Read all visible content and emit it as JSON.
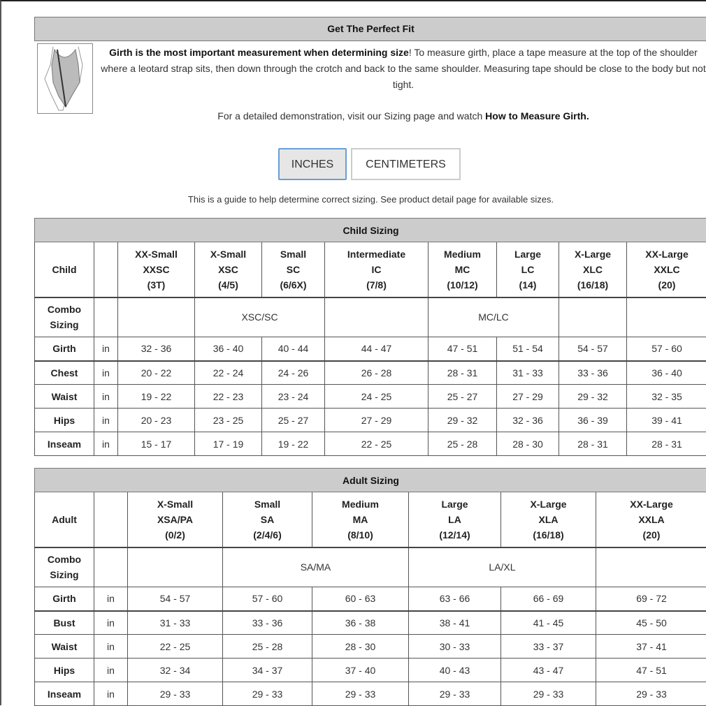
{
  "fit": {
    "title": "Get The Perfect Fit",
    "bold_lead": "Girth is the most important measurement when determining size",
    "body": "! To measure girth, place a tape measure at the top of the shoulder where a leotard strap sits, then down through the crotch and back to the same shoulder. Measuring tape should be close to the body but not tight.",
    "demo_prefix": "For a detailed demonstration, visit our Sizing page and watch ",
    "demo_link": "How to Measure Girth."
  },
  "units": {
    "inches": "INCHES",
    "centimeters": "CENTIMETERS",
    "selected": "INCHES",
    "accent": "#6a9ed6"
  },
  "guide": "This is a guide to help determine correct sizing. See product detail page for available sizes.",
  "child": {
    "title": "Child Sizing",
    "corner": "Child",
    "sizes": [
      [
        "XX-Small",
        "XXSC",
        "(3T)"
      ],
      [
        "X-Small",
        "XSC",
        "(4/5)"
      ],
      [
        "Small",
        "SC",
        "(6/6X)"
      ],
      [
        "Intermediate",
        "IC",
        "(7/8)"
      ],
      [
        "Medium",
        "MC",
        "(10/12)"
      ],
      [
        "Large",
        "LC",
        "(14)"
      ],
      [
        "X-Large",
        "XLC",
        "(16/18)"
      ],
      [
        "XX-Large",
        "XXLC",
        "(20)"
      ]
    ],
    "combo_label": "Combo Sizing",
    "combo": [
      {
        "text": "",
        "span": 1
      },
      {
        "text": "XSC/SC",
        "span": 2
      },
      {
        "text": "",
        "span": 1
      },
      {
        "text": "MC/LC",
        "span": 2
      },
      {
        "text": "",
        "span": 1
      },
      {
        "text": "",
        "span": 1
      }
    ],
    "unit": "in",
    "rows": [
      {
        "label": "Girth",
        "values": [
          "32 - 36",
          "36 - 40",
          "40 - 44",
          "44 - 47",
          "47 - 51",
          "51 - 54",
          "54 - 57",
          "57 - 60"
        ]
      },
      {
        "label": "Chest",
        "values": [
          "20 - 22",
          "22 - 24",
          "24 - 26",
          "26 - 28",
          "28 - 31",
          "31 - 33",
          "33 - 36",
          "36 - 40"
        ]
      },
      {
        "label": "Waist",
        "values": [
          "19 - 22",
          "22 - 23",
          "23 - 24",
          "24 - 25",
          "25 - 27",
          "27 - 29",
          "29 - 32",
          "32 - 35"
        ]
      },
      {
        "label": "Hips",
        "values": [
          "20 - 23",
          "23 - 25",
          "25 - 27",
          "27 - 29",
          "29 - 32",
          "32 - 36",
          "36 - 39",
          "39 - 41"
        ]
      },
      {
        "label": "Inseam",
        "values": [
          "15 - 17",
          "17 - 19",
          "19 - 22",
          "22 - 25",
          "25 - 28",
          "28 - 30",
          "28 - 31",
          "28 - 31"
        ]
      }
    ]
  },
  "adult": {
    "title": "Adult Sizing",
    "corner": "Adult",
    "sizes": [
      [
        "X-Small",
        "XSA/PA",
        "(0/2)"
      ],
      [
        "Small",
        "SA",
        "(2/4/6)"
      ],
      [
        "Medium",
        "MA",
        "(8/10)"
      ],
      [
        "Large",
        "LA",
        "(12/14)"
      ],
      [
        "X-Large",
        "XLA",
        "(16/18)"
      ],
      [
        "XX-Large",
        "XXLA",
        "(20)"
      ]
    ],
    "combo_label": "Combo Sizing",
    "combo": [
      {
        "text": "",
        "span": 1
      },
      {
        "text": "SA/MA",
        "span": 2
      },
      {
        "text": "LA/XL",
        "span": 2
      },
      {
        "text": "",
        "span": 1
      }
    ],
    "unit": "in",
    "rows": [
      {
        "label": "Girth",
        "values": [
          "54 - 57",
          "57 - 60",
          "60 - 63",
          "63 - 66",
          "66 - 69",
          "69 - 72"
        ]
      },
      {
        "label": "Bust",
        "values": [
          "31 - 33",
          "33 - 36",
          "36 - 38",
          "38 - 41",
          "41 - 45",
          "45 - 50"
        ]
      },
      {
        "label": "Waist",
        "values": [
          "22 - 25",
          "25 - 28",
          "28 - 30",
          "30 - 33",
          "33 - 37",
          "37 - 41"
        ]
      },
      {
        "label": "Hips",
        "values": [
          "32 - 34",
          "34 - 37",
          "37 - 40",
          "40 - 43",
          "43 - 47",
          "47 - 51"
        ]
      },
      {
        "label": "Inseam",
        "values": [
          "29 - 33",
          "29 - 33",
          "29 - 33",
          "29 - 33",
          "29 - 33",
          "29 - 33"
        ]
      }
    ]
  }
}
